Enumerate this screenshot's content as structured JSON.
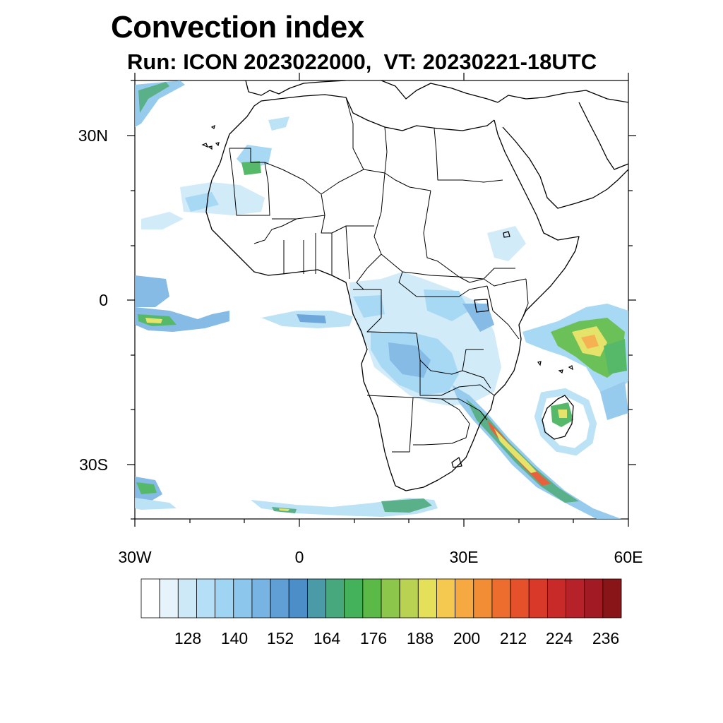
{
  "title": "Convection index",
  "subtitle": "Run: ICON 2023022000,  VT: 20230221-18UTC",
  "axes": {
    "lat_labels": [
      "30N",
      "0",
      "30S"
    ],
    "lon_labels": [
      "30W",
      "0",
      "30E",
      "60E"
    ]
  },
  "colorbar": {
    "labels": [
      "128",
      "140",
      "152",
      "164",
      "176",
      "188",
      "200",
      "212",
      "224",
      "236"
    ],
    "colors": [
      "#ffffff",
      "#e6f3fb",
      "#cde9f8",
      "#b5dff6",
      "#9fd5f3",
      "#8cc6ec",
      "#78b4e3",
      "#5f9fd6",
      "#4c8ec8",
      "#4b9aa8",
      "#48a87d",
      "#44b25a",
      "#5bba47",
      "#8cc64a",
      "#b9d251",
      "#e4e05a",
      "#f5c84f",
      "#f5a940",
      "#f28c35",
      "#ed6d2e",
      "#e5512a",
      "#d93929",
      "#c82a2a",
      "#b6212a",
      "#a21b24",
      "#8a1518"
    ]
  }
}
